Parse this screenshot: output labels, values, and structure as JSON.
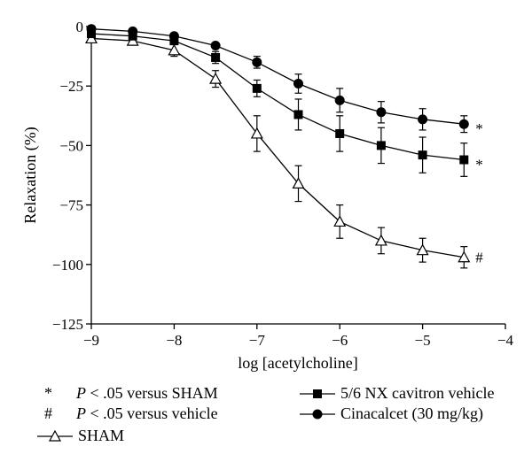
{
  "chart_data": {
    "type": "line",
    "xlabel": "log [acetylcholine]",
    "ylabel": "Relaxation (%)",
    "xlim": [
      -9,
      -4
    ],
    "ylim": [
      -125,
      0
    ],
    "x_ticks": [
      "−9",
      "−8",
      "−7",
      "−6",
      "−5",
      "−4"
    ],
    "x_tick_values": [
      -9,
      -8,
      -7,
      -6,
      -5,
      -4
    ],
    "y_ticks": [
      "0",
      "−25",
      "−50",
      "−75",
      "−100",
      "−125"
    ],
    "y_tick_values": [
      0,
      -25,
      -50,
      -75,
      -100,
      -125
    ],
    "x": [
      -9,
      -8.5,
      -8,
      -7.5,
      -7,
      -6.5,
      -6,
      -5.5,
      -5,
      -4.5
    ],
    "series": [
      {
        "name": "SHAM",
        "marker": "open-triangle",
        "values": [
          -5,
          -6,
          -10,
          -22,
          -45,
          -66,
          -82,
          -90,
          -94,
          -97
        ],
        "errors": [
          1.5,
          1.5,
          2.5,
          3.5,
          7.5,
          7.5,
          7,
          5.5,
          5,
          4.5
        ],
        "end_mark": "#"
      },
      {
        "name": "5/6 NX cavitron vehicle",
        "marker": "filled-square",
        "values": [
          -3,
          -4,
          -6,
          -13,
          -26,
          -37,
          -45,
          -50,
          -54,
          -56
        ],
        "errors": [
          1,
          1,
          1.5,
          2.5,
          3.5,
          6.5,
          7.5,
          7.5,
          7.5,
          7
        ],
        "end_mark": "*"
      },
      {
        "name": "Cinacalcet (30 mg/kg)",
        "marker": "filled-circle",
        "values": [
          -1,
          -2,
          -4,
          -8,
          -15,
          -24,
          -31,
          -36,
          -39,
          -41
        ],
        "errors": [
          0.5,
          0.5,
          1,
          1,
          2.5,
          4,
          5,
          4.5,
          4.5,
          3.5
        ],
        "end_mark": "*"
      }
    ]
  },
  "legend": {
    "note1_symbol": "*",
    "note1_p": "P",
    "note1_text": " < .05 versus SHAM",
    "note2_symbol": "#",
    "note2_p": "P",
    "note2_text": " < .05 versus vehicle",
    "sham_label": "SHAM",
    "nx_label": "5/6 NX cavitron vehicle",
    "cina_label": "Cinacalcet (30 mg/kg)"
  }
}
